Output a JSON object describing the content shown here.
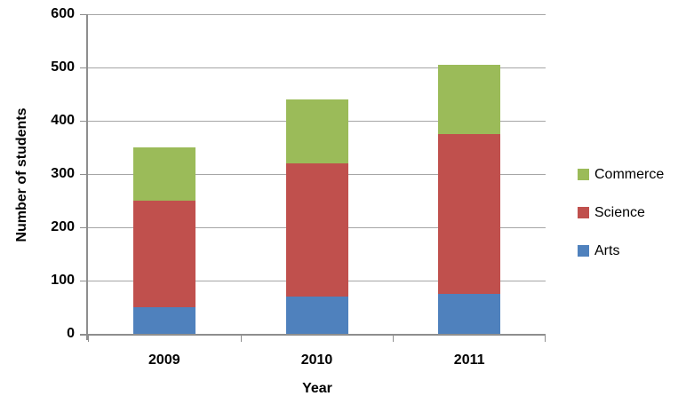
{
  "chart_data": {
    "type": "bar",
    "stacked": true,
    "title": "",
    "xlabel": "Year",
    "ylabel": "Number of students",
    "categories": [
      "2009",
      "2010",
      "2011"
    ],
    "series": [
      {
        "name": "Arts",
        "color": "#4F81BD",
        "values": [
          50,
          70,
          75
        ]
      },
      {
        "name": "Science",
        "color": "#C0504D",
        "values": [
          200,
          250,
          300
        ]
      },
      {
        "name": "Commerce",
        "color": "#9BBB59",
        "values": [
          100,
          120,
          130
        ]
      }
    ],
    "totals": [
      350,
      440,
      505
    ],
    "ylim": [
      0,
      600
    ],
    "yticks": [
      0,
      100,
      200,
      300,
      400,
      500,
      600
    ],
    "grid": true,
    "legend_position": "right",
    "legend_order": [
      "Commerce",
      "Science",
      "Arts"
    ],
    "colors": {
      "gridline": "#A6A6A6",
      "axis": "#8E8E8E",
      "text": "#000000",
      "background": "#FFFFFF"
    }
  }
}
